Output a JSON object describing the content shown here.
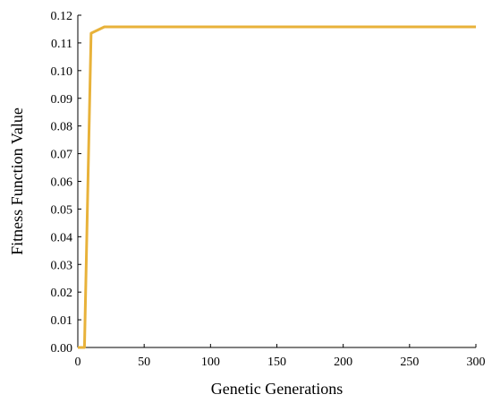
{
  "chart_data": {
    "type": "line",
    "title": "",
    "xlabel": "Genetic Generations",
    "ylabel": "Fitness Function Value",
    "xlim": [
      0,
      300
    ],
    "ylim": [
      0,
      0.12
    ],
    "xticks": [
      "0",
      "50",
      "100",
      "150",
      "200",
      "250",
      "300"
    ],
    "yticks": [
      "0.00",
      "0.01",
      "0.02",
      "0.03",
      "0.04",
      "0.05",
      "0.06",
      "0.07",
      "0.08",
      "0.09",
      "0.10",
      "0.11",
      "0.12"
    ],
    "grid": false,
    "legend": "none",
    "series": [
      {
        "color": "#E8B23A",
        "x": [
          0,
          5,
          10,
          20,
          30,
          50,
          100,
          150,
          200,
          250,
          300
        ],
        "y": [
          0.0,
          0.0,
          0.1135,
          0.1158,
          0.1158,
          0.1158,
          0.1158,
          0.1158,
          0.1158,
          0.1158,
          0.1158
        ]
      }
    ]
  }
}
